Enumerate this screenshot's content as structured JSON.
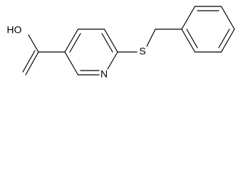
{
  "atoms": [
    {
      "label": "HO"
    },
    {
      "label": "N"
    },
    {
      "label": "S"
    }
  ]
}
